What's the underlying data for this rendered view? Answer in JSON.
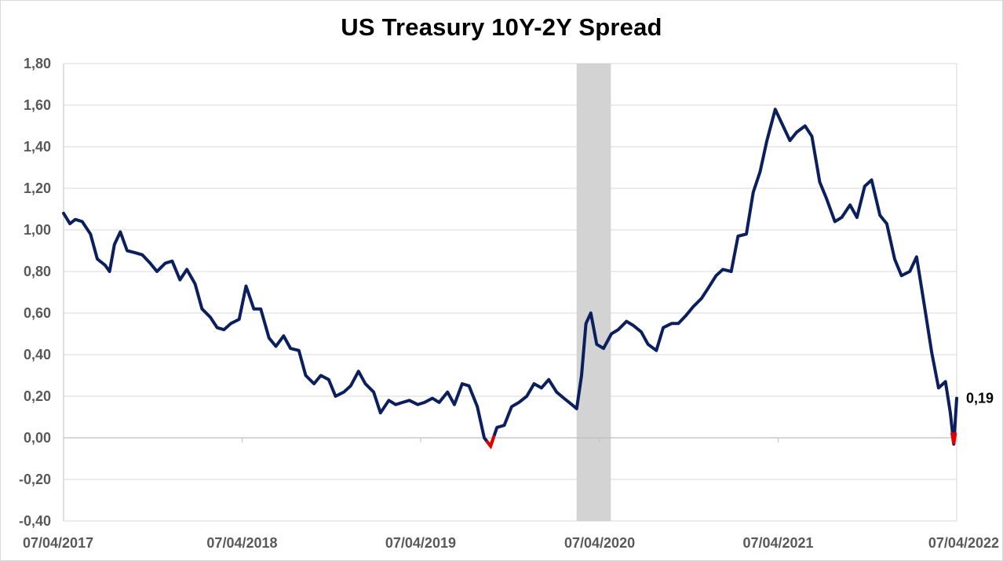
{
  "chart_data": {
    "type": "line",
    "title": "US Treasury 10Y-2Y Spread",
    "xlabel": "",
    "ylabel": "",
    "x_range": [
      "2017-04-07",
      "2022-04-07"
    ],
    "ylim": [
      -0.4,
      1.8
    ],
    "y_ticks": [
      "-0,40",
      "-0,20",
      "0,00",
      "0,20",
      "0,40",
      "0,60",
      "0,80",
      "1,00",
      "1,20",
      "1,40",
      "1,60",
      "1,80"
    ],
    "y_tick_values": [
      -0.4,
      -0.2,
      0.0,
      0.2,
      0.4,
      0.6,
      0.8,
      1.0,
      1.2,
      1.4,
      1.6,
      1.8
    ],
    "x_ticks": [
      "07/04/2017",
      "07/04/2018",
      "07/04/2019",
      "07/04/2020",
      "07/04/2021",
      "07/04/2022"
    ],
    "x_tick_dates": [
      "2017-04-07",
      "2018-04-07",
      "2019-04-07",
      "2020-04-07",
      "2021-04-07",
      "2022-04-07"
    ],
    "grid": "horizontal",
    "legend": "none",
    "shaded_region": {
      "start": "2020-02-20",
      "end": "2020-04-30",
      "color": "#d3d3d3"
    },
    "end_annotation": "0,19",
    "colors": {
      "line": "#0a1f5c",
      "negative": "#e00000",
      "grid": "#d9d9d9"
    },
    "series": [
      {
        "values": [
          [
            "2017-04-07",
            1.08
          ],
          [
            "2017-04-20",
            1.03
          ],
          [
            "2017-05-01",
            1.05
          ],
          [
            "2017-05-15",
            1.04
          ],
          [
            "2017-06-01",
            0.98
          ],
          [
            "2017-06-15",
            0.86
          ],
          [
            "2017-07-01",
            0.83
          ],
          [
            "2017-07-10",
            0.8
          ],
          [
            "2017-07-20",
            0.93
          ],
          [
            "2017-08-01",
            0.99
          ],
          [
            "2017-08-15",
            0.9
          ],
          [
            "2017-09-01",
            0.89
          ],
          [
            "2017-09-15",
            0.88
          ],
          [
            "2017-10-01",
            0.84
          ],
          [
            "2017-10-15",
            0.8
          ],
          [
            "2017-11-01",
            0.84
          ],
          [
            "2017-11-15",
            0.85
          ],
          [
            "2017-12-01",
            0.76
          ],
          [
            "2017-12-15",
            0.81
          ],
          [
            "2018-01-01",
            0.74
          ],
          [
            "2018-01-15",
            0.62
          ],
          [
            "2018-02-01",
            0.58
          ],
          [
            "2018-02-15",
            0.53
          ],
          [
            "2018-03-01",
            0.52
          ],
          [
            "2018-03-15",
            0.55
          ],
          [
            "2018-04-01",
            0.57
          ],
          [
            "2018-04-15",
            0.73
          ],
          [
            "2018-05-01",
            0.62
          ],
          [
            "2018-05-15",
            0.62
          ],
          [
            "2018-06-01",
            0.48
          ],
          [
            "2018-06-15",
            0.44
          ],
          [
            "2018-07-01",
            0.49
          ],
          [
            "2018-07-15",
            0.43
          ],
          [
            "2018-08-01",
            0.42
          ],
          [
            "2018-08-15",
            0.3
          ],
          [
            "2018-09-01",
            0.26
          ],
          [
            "2018-09-15",
            0.3
          ],
          [
            "2018-10-01",
            0.28
          ],
          [
            "2018-10-15",
            0.2
          ],
          [
            "2018-11-01",
            0.22
          ],
          [
            "2018-11-15",
            0.25
          ],
          [
            "2018-12-01",
            0.32
          ],
          [
            "2018-12-15",
            0.26
          ],
          [
            "2019-01-01",
            0.22
          ],
          [
            "2019-01-15",
            0.12
          ],
          [
            "2019-02-01",
            0.18
          ],
          [
            "2019-02-15",
            0.16
          ],
          [
            "2019-03-01",
            0.17
          ],
          [
            "2019-03-15",
            0.18
          ],
          [
            "2019-04-01",
            0.16
          ],
          [
            "2019-04-15",
            0.17
          ],
          [
            "2019-05-01",
            0.19
          ],
          [
            "2019-05-15",
            0.17
          ],
          [
            "2019-06-01",
            0.22
          ],
          [
            "2019-06-15",
            0.16
          ],
          [
            "2019-07-01",
            0.26
          ],
          [
            "2019-07-15",
            0.25
          ],
          [
            "2019-08-01",
            0.15
          ],
          [
            "2019-08-15",
            0.0
          ],
          [
            "2019-08-28",
            -0.04
          ],
          [
            "2019-09-10",
            0.05
          ],
          [
            "2019-09-25",
            0.06
          ],
          [
            "2019-10-10",
            0.15
          ],
          [
            "2019-10-25",
            0.17
          ],
          [
            "2019-11-10",
            0.2
          ],
          [
            "2019-11-25",
            0.26
          ],
          [
            "2019-12-10",
            0.24
          ],
          [
            "2019-12-25",
            0.28
          ],
          [
            "2020-01-10",
            0.22
          ],
          [
            "2020-01-25",
            0.19
          ],
          [
            "2020-02-10",
            0.16
          ],
          [
            "2020-02-20",
            0.14
          ],
          [
            "2020-03-01",
            0.3
          ],
          [
            "2020-03-10",
            0.55
          ],
          [
            "2020-03-20",
            0.6
          ],
          [
            "2020-04-01",
            0.45
          ],
          [
            "2020-04-15",
            0.43
          ],
          [
            "2020-05-01",
            0.5
          ],
          [
            "2020-05-15",
            0.52
          ],
          [
            "2020-06-01",
            0.56
          ],
          [
            "2020-06-15",
            0.54
          ],
          [
            "2020-07-01",
            0.51
          ],
          [
            "2020-07-15",
            0.45
          ],
          [
            "2020-08-01",
            0.42
          ],
          [
            "2020-08-15",
            0.53
          ],
          [
            "2020-09-01",
            0.55
          ],
          [
            "2020-09-15",
            0.55
          ],
          [
            "2020-10-01",
            0.59
          ],
          [
            "2020-10-15",
            0.63
          ],
          [
            "2020-11-01",
            0.67
          ],
          [
            "2020-11-15",
            0.72
          ],
          [
            "2020-12-01",
            0.78
          ],
          [
            "2020-12-15",
            0.81
          ],
          [
            "2021-01-01",
            0.8
          ],
          [
            "2021-01-15",
            0.97
          ],
          [
            "2021-02-01",
            0.98
          ],
          [
            "2021-02-15",
            1.18
          ],
          [
            "2021-03-01",
            1.28
          ],
          [
            "2021-03-15",
            1.43
          ],
          [
            "2021-04-01",
            1.58
          ],
          [
            "2021-04-15",
            1.51
          ],
          [
            "2021-05-01",
            1.43
          ],
          [
            "2021-05-15",
            1.47
          ],
          [
            "2021-06-01",
            1.5
          ],
          [
            "2021-06-15",
            1.45
          ],
          [
            "2021-07-01",
            1.23
          ],
          [
            "2021-07-15",
            1.15
          ],
          [
            "2021-08-01",
            1.04
          ],
          [
            "2021-08-15",
            1.06
          ],
          [
            "2021-09-01",
            1.12
          ],
          [
            "2021-09-15",
            1.06
          ],
          [
            "2021-10-01",
            1.21
          ],
          [
            "2021-10-15",
            1.24
          ],
          [
            "2021-11-01",
            1.07
          ],
          [
            "2021-11-15",
            1.03
          ],
          [
            "2021-12-01",
            0.86
          ],
          [
            "2021-12-15",
            0.78
          ],
          [
            "2022-01-01",
            0.8
          ],
          [
            "2022-01-15",
            0.87
          ],
          [
            "2022-02-01",
            0.62
          ],
          [
            "2022-02-15",
            0.41
          ],
          [
            "2022-03-01",
            0.24
          ],
          [
            "2022-03-15",
            0.27
          ],
          [
            "2022-03-25",
            0.12
          ],
          [
            "2022-04-01",
            -0.03
          ],
          [
            "2022-04-07",
            0.19
          ]
        ]
      }
    ]
  }
}
